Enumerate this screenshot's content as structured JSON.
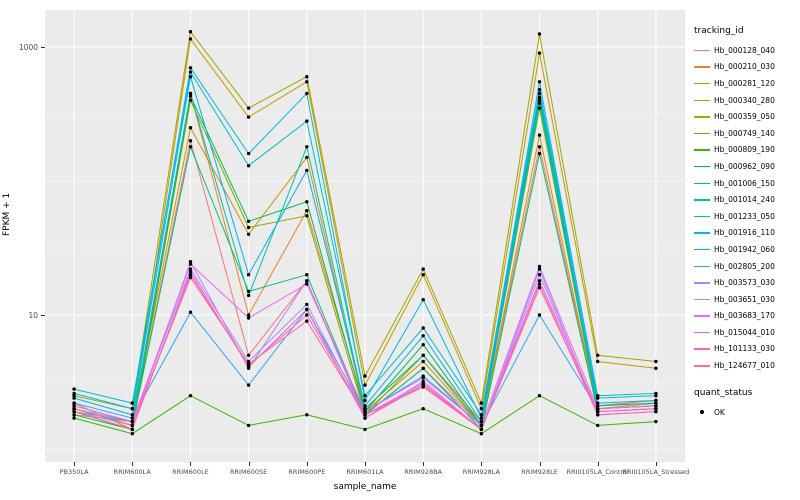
{
  "figure": {
    "background": "#FFFFFF",
    "panel_background": "#EBEBEB",
    "grid_color": "#FFFFFF",
    "tick_label_color": "#4D4D4D",
    "ylabel": "FPKM + 1",
    "xlabel": "sample_name",
    "legend": {
      "tracking_title": "tracking_id",
      "quant_title": "quant_status",
      "quant_items": [
        {
          "label": "OK"
        }
      ]
    }
  },
  "chart_data": {
    "type": "line",
    "title": "",
    "xlabel": "sample_name",
    "ylabel": "FPKM + 1",
    "y_scale": "log10",
    "ylim": [
      0.8,
      1890
    ],
    "y_breaks": [
      10,
      1000
    ],
    "y_minor": [
      1,
      3.162,
      31.62,
      100,
      316.2
    ],
    "grid": true,
    "legend_position": "right",
    "point_color": "#000000",
    "quant_status": "OK",
    "categories": [
      "PB350LA",
      "RRIM600LA",
      "RRIM600LE",
      "RRIM600SE",
      "RRIM600PE",
      "RRIM601LA",
      "RRIM928BA",
      "RRIM928LA",
      "RRIM928LE",
      "RRIII105LA_Control",
      "RRIII105LA_Stressed"
    ],
    "series": [
      {
        "name": "Hb_000128_040",
        "color": "#F8766D",
        "values": [
          2.0,
          1.5,
          200,
          5.0,
          18,
          1.8,
          4.0,
          1.5,
          180,
          2.0,
          2.2
        ]
      },
      {
        "name": "Hb_000210_030",
        "color": "#EA8331",
        "values": [
          2.2,
          1.4,
          450,
          10,
          60,
          2.0,
          5.0,
          1.6,
          400,
          2.1,
          2.3
        ]
      },
      {
        "name": "Hb_000281_120",
        "color": "#D89000",
        "values": [
          1.8,
          1.6,
          250,
          40,
          150,
          1.9,
          4.5,
          1.5,
          220,
          2.0,
          2.1
        ]
      },
      {
        "name": "Hb_000340_280",
        "color": "#C09B00",
        "values": [
          2.1,
          1.6,
          1150,
          300,
          550,
          3.0,
          20,
          2.0,
          900,
          4.5,
          4.0
        ]
      },
      {
        "name": "Hb_000359_050",
        "color": "#A3A500",
        "values": [
          2.5,
          2.0,
          1300,
          350,
          600,
          3.5,
          22,
          2.2,
          1250,
          5.0,
          4.5
        ]
      },
      {
        "name": "Hb_000749_140",
        "color": "#7CAE00",
        "values": [
          1.9,
          1.4,
          400,
          45,
          55,
          1.8,
          5.0,
          1.5,
          350,
          2.0,
          2.1
        ]
      },
      {
        "name": "Hb_000809_190",
        "color": "#39B600",
        "values": [
          1.7,
          1.3,
          2.5,
          1.5,
          1.8,
          1.4,
          2.0,
          1.3,
          2.5,
          1.5,
          1.6
        ]
      },
      {
        "name": "Hb_000962_090",
        "color": "#00BB4E",
        "values": [
          1.8,
          1.4,
          430,
          50,
          70,
          1.9,
          6.0,
          1.5,
          420,
          2.1,
          2.2
        ]
      },
      {
        "name": "Hb_001006_150",
        "color": "#00BF7D",
        "values": [
          2.0,
          1.5,
          180,
          15,
          20,
          1.8,
          4.0,
          1.4,
          160,
          1.9,
          2.0
        ]
      },
      {
        "name": "Hb_001014_240",
        "color": "#00C1A3",
        "values": [
          1.9,
          1.6,
          450,
          14,
          180,
          2.0,
          5.0,
          1.5,
          380,
          2.0,
          2.1
        ]
      },
      {
        "name": "Hb_001233_050",
        "color": "#00BFC4",
        "values": [
          2.8,
          2.2,
          650,
          130,
          280,
          2.5,
          8.0,
          1.8,
          480,
          2.5,
          2.6
        ]
      },
      {
        "name": "Hb_001916_110",
        "color": "#00BAE0",
        "values": [
          2.6,
          2.0,
          700,
          160,
          450,
          2.3,
          13,
          1.7,
          550,
          2.4,
          2.5
        ]
      },
      {
        "name": "Hb_001942_060",
        "color": "#00B0F6",
        "values": [
          2.4,
          1.8,
          600,
          20,
          120,
          2.1,
          7.0,
          1.6,
          450,
          2.2,
          2.3
        ]
      },
      {
        "name": "Hb_002805_200",
        "color": "#35A2FF",
        "values": [
          2.2,
          1.7,
          10.5,
          3.0,
          11,
          1.9,
          3.5,
          1.5,
          10,
          2.0,
          2.1
        ]
      },
      {
        "name": "Hb_003573_030",
        "color": "#9590FF",
        "values": [
          2.0,
          1.6,
          22,
          4.5,
          12,
          1.8,
          3.0,
          1.4,
          20,
          1.9,
          2.0
        ]
      },
      {
        "name": "Hb_003651_030",
        "color": "#C77CFF",
        "values": [
          1.9,
          1.5,
          25,
          4.0,
          18,
          1.7,
          3.2,
          1.4,
          22,
          1.8,
          1.9
        ]
      },
      {
        "name": "Hb_003683_170",
        "color": "#E76BF3",
        "values": [
          2.1,
          1.6,
          24,
          9.5,
          17,
          1.9,
          3.4,
          1.5,
          23,
          2.0,
          2.1
        ]
      },
      {
        "name": "Hb_015044_010",
        "color": "#FA62DB",
        "values": [
          2.0,
          1.5,
          20,
          4.2,
          10,
          1.8,
          3.1,
          1.4,
          18,
          1.9,
          2.0
        ]
      },
      {
        "name": "Hb_101133_030",
        "color": "#FF62BC",
        "values": [
          1.9,
          1.4,
          21,
          4.1,
          11,
          1.7,
          3.0,
          1.4,
          17,
          1.8,
          1.9
        ]
      },
      {
        "name": "Hb_124677_010",
        "color": "#FF6A98",
        "values": [
          2.0,
          1.5,
          19,
          4.3,
          9.0,
          1.8,
          2.9,
          1.4,
          16,
          1.9,
          2.0
        ]
      }
    ]
  }
}
